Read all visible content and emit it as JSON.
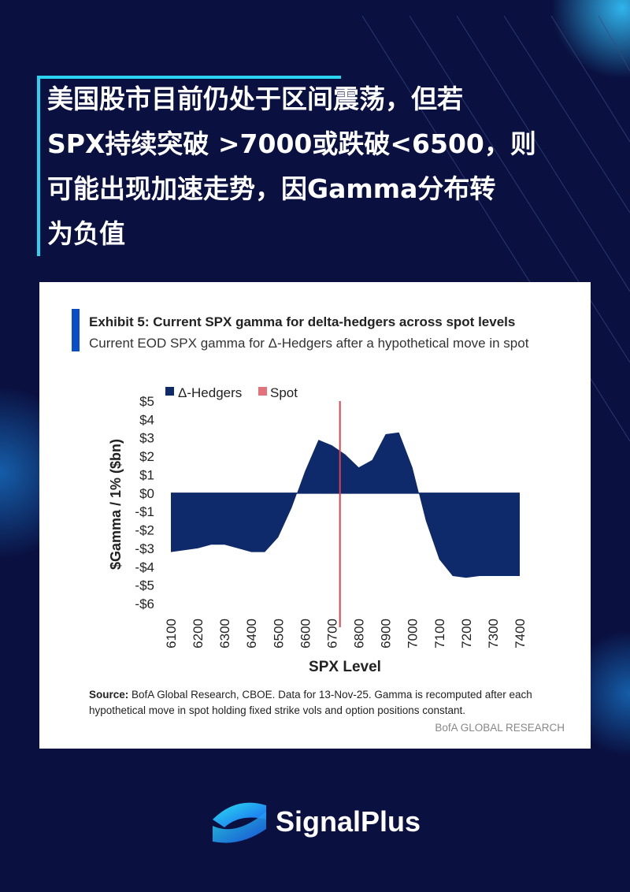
{
  "headline": [
    "美国股市目前仍处于区间震荡，但若",
    "SPX持续突破 >7000或跌破<6500，则",
    "可能出现加速走势，因Gamma分布转",
    "为负值"
  ],
  "brand": "SignalPlus",
  "chart_data": {
    "type": "area",
    "title": "Exhibit 5: Current SPX gamma for delta-hedgers across spot levels",
    "subtitle": "Current EOD SPX gamma for Δ-Hedgers after a hypothetical move in spot",
    "x_label": "SPX Level",
    "y_label": "$Gamma / 1% ($bn)",
    "x": [
      6100,
      6150,
      6200,
      6250,
      6300,
      6350,
      6400,
      6450,
      6500,
      6550,
      6600,
      6650,
      6700,
      6750,
      6800,
      6850,
      6900,
      6950,
      7000,
      7050,
      7100,
      7150,
      7200,
      7250,
      7300,
      7350,
      7400
    ],
    "series": [
      {
        "name": "Δ-Hedgers",
        "color": "#0f2a6b",
        "values": [
          -3.2,
          -3.1,
          -3.0,
          -2.8,
          -2.8,
          -3.0,
          -3.2,
          -3.2,
          -2.4,
          -0.8,
          1.2,
          2.9,
          2.6,
          2.1,
          1.4,
          1.8,
          3.2,
          3.3,
          1.4,
          -1.5,
          -3.6,
          -4.5,
          -4.6,
          -4.5,
          -4.5,
          -4.5,
          -4.5
        ]
      }
    ],
    "spot": {
      "name": "Spot",
      "color": "#d9434f",
      "value": 6730
    },
    "xlim": [
      6100,
      7400
    ],
    "xticks": [
      6100,
      6200,
      6300,
      6400,
      6500,
      6600,
      6700,
      6800,
      6900,
      7000,
      7100,
      7200,
      7300,
      7400
    ],
    "ylim": [
      -6,
      5
    ],
    "yticks": [
      {
        "value": 5,
        "label": "$5"
      },
      {
        "value": 4,
        "label": "$4"
      },
      {
        "value": 3,
        "label": "$3"
      },
      {
        "value": 2,
        "label": "$2"
      },
      {
        "value": 1,
        "label": "$1"
      },
      {
        "value": 0,
        "label": "$0"
      },
      {
        "value": -1,
        "label": "-$1"
      },
      {
        "value": -2,
        "label": "-$2"
      },
      {
        "value": -3,
        "label": "-$3"
      },
      {
        "value": -4,
        "label": "-$4"
      },
      {
        "value": -5,
        "label": "-$5"
      },
      {
        "value": -6,
        "label": "-$6"
      }
    ],
    "grid": false,
    "source_label": "Source:",
    "source_lines": [
      " BofA Global Research, CBOE. Data for 13-Nov-25. Gamma is recomputed after each",
      "hypothetical move in spot holding fixed strike vols and option positions constant."
    ],
    "credit": "BofA GLOBAL RESEARCH"
  }
}
